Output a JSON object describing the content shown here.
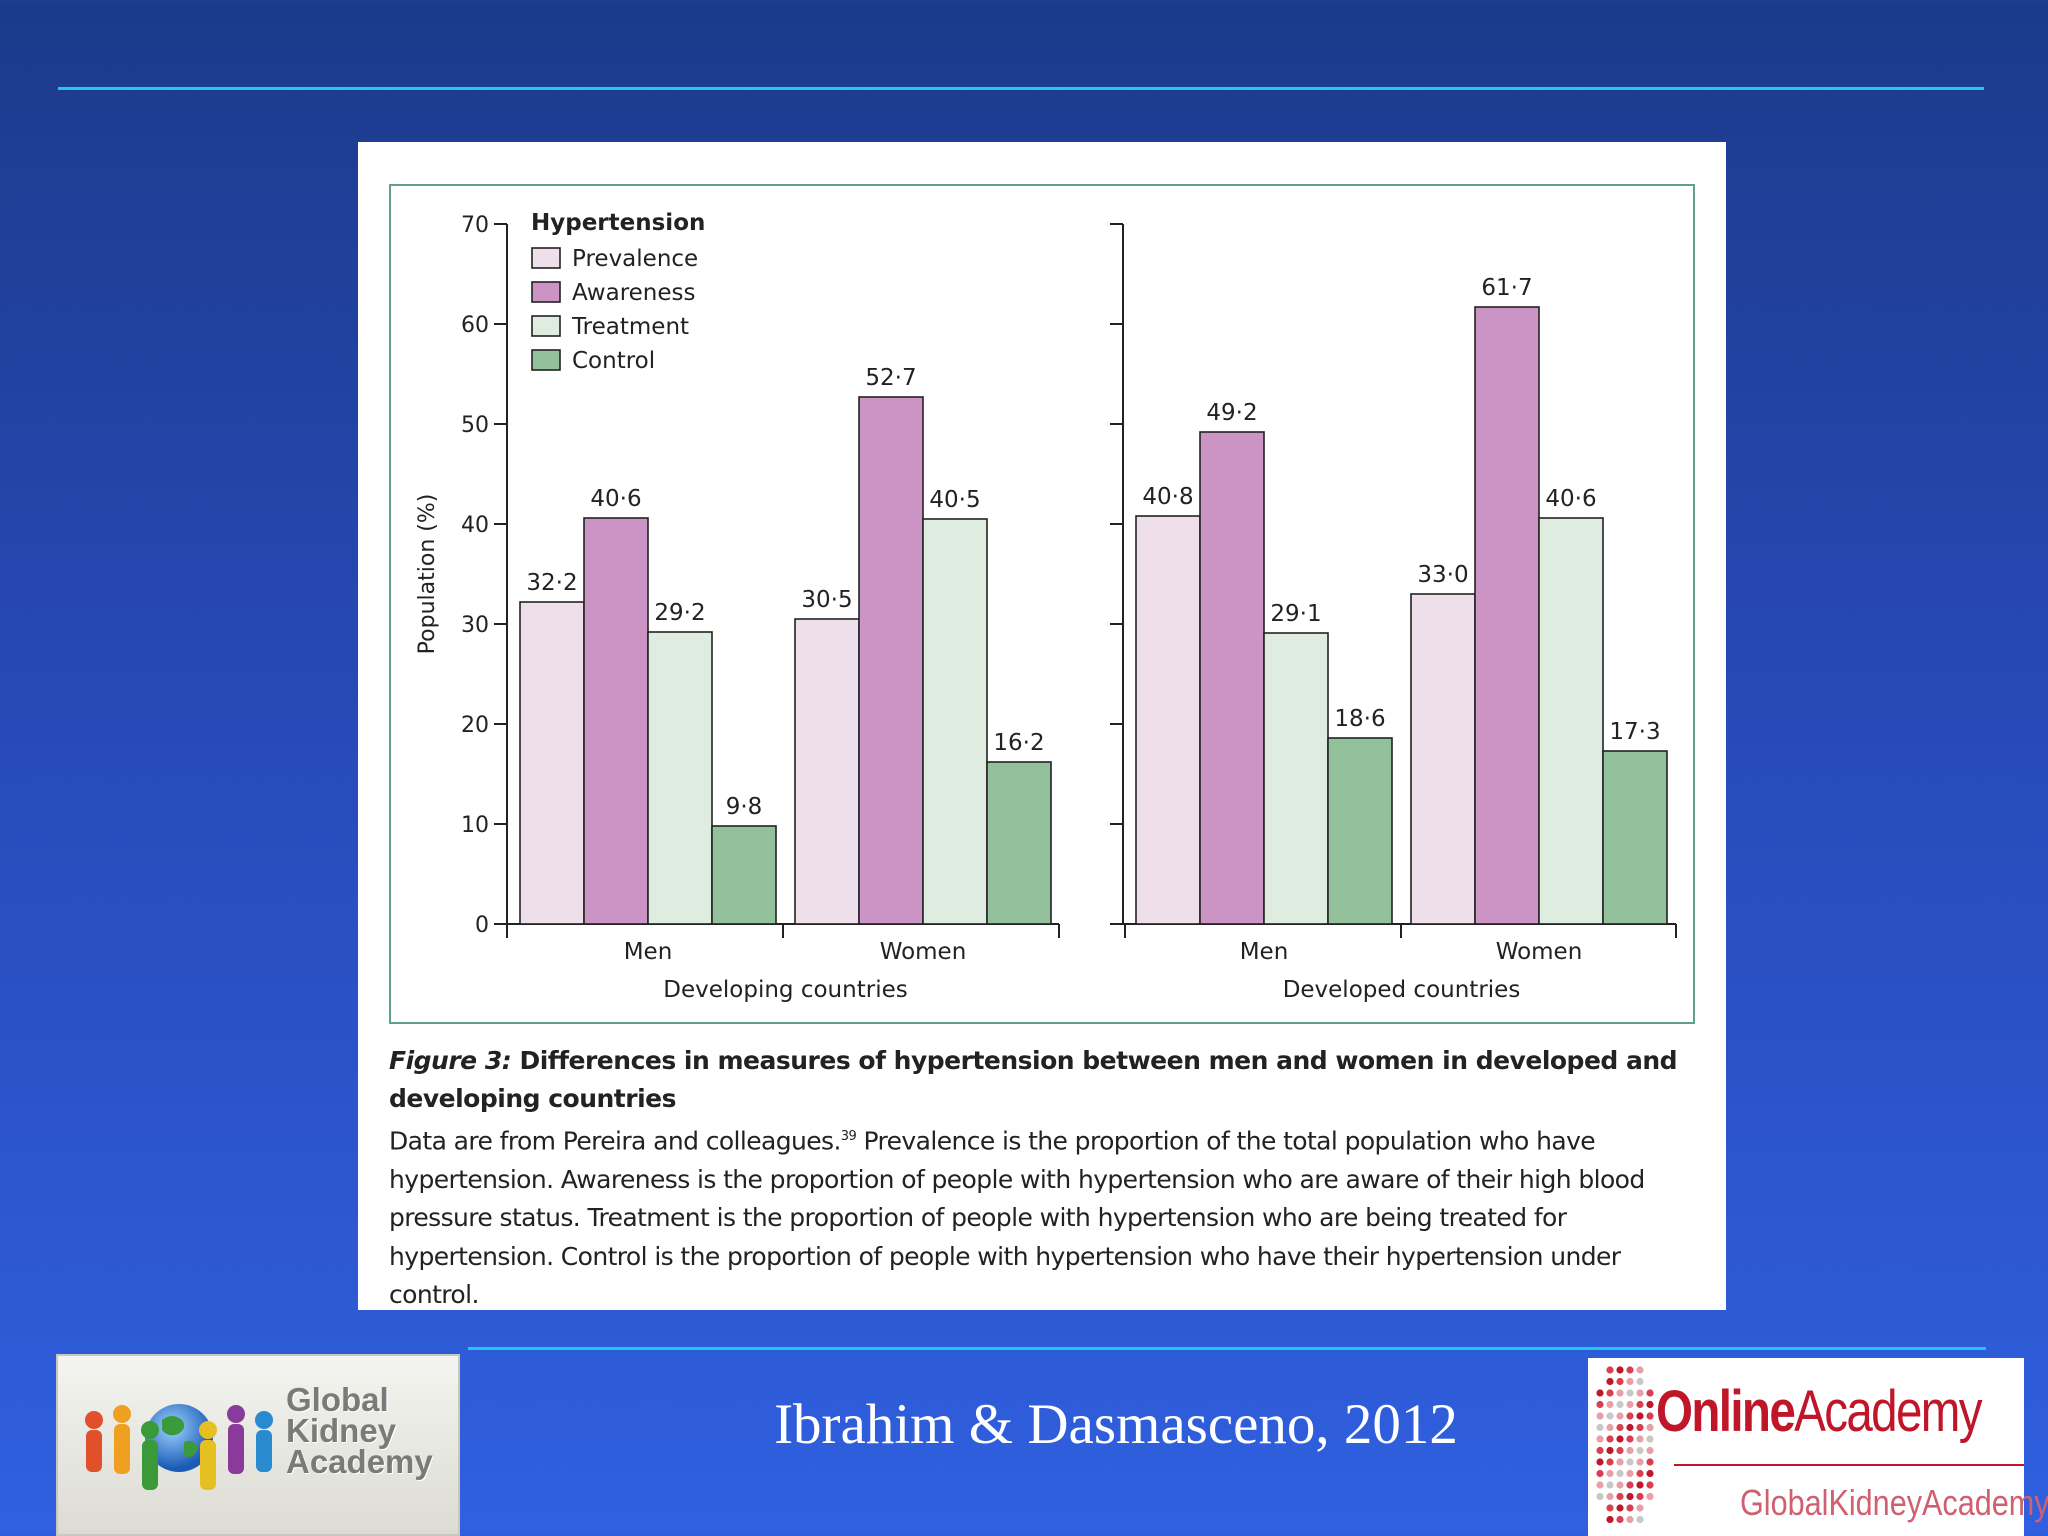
{
  "chart_data": {
    "type": "bar",
    "legend_title": "Hypertension",
    "legend": [
      {
        "name": "Prevalence",
        "color": "#efdfeb"
      },
      {
        "name": "Awareness",
        "color": "#cc93c5"
      },
      {
        "name": "Treatment",
        "color": "#deeddf"
      },
      {
        "name": "Control",
        "color": "#93c19b"
      }
    ],
    "ylabel": "Population (%)",
    "ylim": [
      0,
      70
    ],
    "yticks": [
      "0",
      "10",
      "20",
      "30",
      "40",
      "50",
      "60",
      "70"
    ],
    "panels": [
      {
        "xlabel": "Developing countries",
        "groups": [
          {
            "category": "Men",
            "values": [
              32.2,
              40.6,
              29.2,
              9.8
            ],
            "labels": [
              "32·2",
              "40·6",
              "29·2",
              "9·8"
            ]
          },
          {
            "category": "Women",
            "values": [
              30.5,
              52.7,
              40.5,
              16.2
            ],
            "labels": [
              "30·5",
              "52·7",
              "40·5",
              "16·2"
            ]
          }
        ]
      },
      {
        "xlabel": "Developed countries",
        "groups": [
          {
            "category": "Men",
            "values": [
              40.8,
              49.2,
              29.1,
              18.6
            ],
            "labels": [
              "40·8",
              "49·2",
              "29·1",
              "18·6"
            ]
          },
          {
            "category": "Women",
            "values": [
              33.0,
              61.7,
              40.6,
              17.3
            ],
            "labels": [
              "33·0",
              "61·7",
              "40·6",
              "17·3"
            ]
          }
        ]
      }
    ]
  },
  "caption": {
    "figure_label": "Figure 3:",
    "title": "Differences in measures of hypertension between men and women in developed and developing countries",
    "body_before_ref": "Data are from Pereira and colleagues.",
    "ref": "39",
    "body_after_ref": " Prevalence is the proportion of the total population who have hypertension. Awareness is the proportion of people with hypertension who are aware of their high blood pressure status. Treatment is the proportion of people with hypertension who are being treated for hypertension. Control is the proportion of people with hypertension who have their hypertension under control."
  },
  "citation": "Ibrahim & Dasmasceno, 2012",
  "logos": {
    "left_text": [
      "Global",
      "Kidney",
      "Academy"
    ],
    "right_online": "Online",
    "right_academy": "Academy",
    "right_sub": "GlobalKidneyAcademy"
  },
  "colors": {
    "accent_rule": "#1ec8f0",
    "background_top": "#1c3a8a",
    "background_bottom": "#3060e0"
  }
}
